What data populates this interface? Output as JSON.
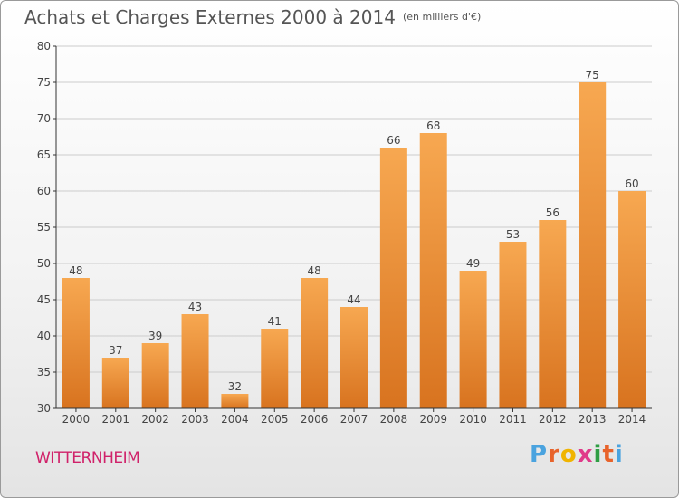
{
  "header": {
    "title": "Achats et Charges Externes 2000 à 2014",
    "unit": "(en milliers d'€)"
  },
  "footer": {
    "place": "WITTERNHEIM",
    "logo_letters": [
      "P",
      "r",
      "o",
      "x",
      "i",
      "t",
      "i"
    ],
    "logo_colors": [
      "#4aa3df",
      "#e8632b",
      "#f0b400",
      "#e03a8a",
      "#2f9e44",
      "#e8632b",
      "#4aa3df"
    ]
  },
  "colors": {
    "bar_top": "#f7a851",
    "bar_bottom": "#d8731f",
    "axis": "#333333",
    "grid": "#cccccc",
    "text": "#444444"
  },
  "chart_data": {
    "type": "bar",
    "title": "Achats et Charges Externes 2000 à 2014",
    "subtitle": "(en milliers d'€)",
    "xlabel": "",
    "ylabel": "",
    "categories": [
      "2000",
      "2001",
      "2002",
      "2003",
      "2004",
      "2005",
      "2006",
      "2007",
      "2008",
      "2009",
      "2010",
      "2011",
      "2012",
      "2013",
      "2014"
    ],
    "values": [
      48,
      37,
      39,
      43,
      32,
      41,
      48,
      44,
      66,
      68,
      49,
      53,
      56,
      75,
      60
    ],
    "ylim": [
      30,
      80
    ],
    "yticks": [
      30,
      35,
      40,
      45,
      50,
      55,
      60,
      65,
      70,
      75,
      80
    ],
    "grid": true,
    "legend": "none"
  }
}
